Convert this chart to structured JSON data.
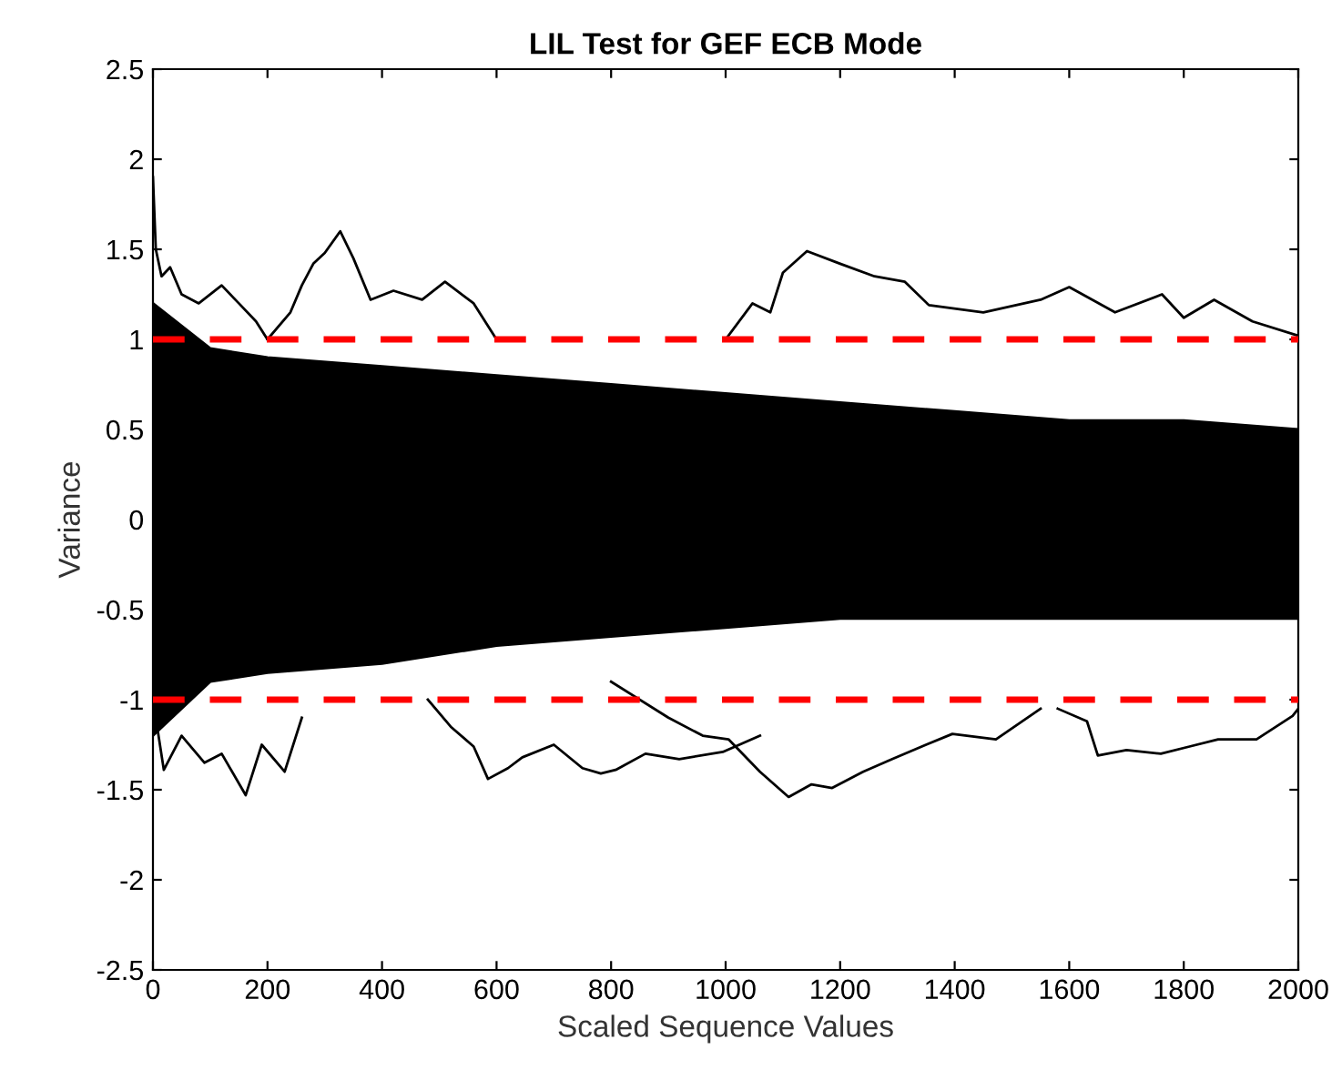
{
  "chart_data": {
    "type": "line",
    "title": "LIL Test for GEF ECB Mode",
    "xlabel": "Scaled Sequence Values",
    "ylabel": "Variance",
    "xlim": [
      0,
      2000
    ],
    "xticks": [
      0,
      200,
      400,
      600,
      800,
      1000,
      1200,
      1400,
      1600,
      1800,
      2000
    ],
    "ylim": [
      -2.5,
      2.5
    ],
    "yticks": [
      -2.5,
      -2,
      -1.5,
      -1,
      -0.5,
      0,
      0.5,
      1,
      1.5,
      2,
      2.5
    ],
    "grid": false,
    "legend": false,
    "line_style": "solid",
    "marker": "none",
    "ref_lines": [
      {
        "axis": "y",
        "value": 1,
        "color": "#ff0000",
        "line_style": "dashed"
      },
      {
        "axis": "y",
        "value": -1,
        "color": "#ff0000",
        "line_style": "dashed"
      }
    ],
    "series": [
      {
        "type": "area",
        "color": "#000000",
        "x": [
          0,
          100,
          200,
          400,
          600,
          800,
          1000,
          1200,
          1400,
          1600,
          1800,
          2000
        ],
        "values": [
          1.2,
          0.95,
          0.9,
          0.85,
          0.8,
          0.75,
          0.7,
          0.65,
          0.6,
          0.55,
          0.55,
          0.5
        ]
      },
      {
        "type": "area",
        "color": "#000000",
        "x": [
          0,
          100,
          200,
          400,
          600,
          800,
          1000,
          1200,
          1400,
          1600,
          1800,
          2000
        ],
        "values": [
          -1.2,
          -0.9,
          -0.85,
          -0.8,
          -0.7,
          -0.65,
          -0.6,
          -0.55,
          -0.55,
          -0.55,
          -0.55,
          -0.55
        ]
      },
      {
        "color": "#000000",
        "x": [
          0,
          5,
          15,
          30,
          50,
          80,
          120,
          150,
          180,
          200
        ],
        "values": [
          1.9,
          1.5,
          1.35,
          1.4,
          1.25,
          1.2,
          1.3,
          1.2,
          1.1,
          1.0
        ]
      },
      {
        "color": "#000000",
        "x": [
          200,
          240,
          260,
          280,
          300,
          327,
          350,
          380,
          420,
          470,
          510,
          560,
          600
        ],
        "values": [
          1.0,
          1.15,
          1.3,
          1.42,
          1.48,
          1.6,
          1.45,
          1.22,
          1.27,
          1.22,
          1.32,
          1.2,
          1.0
        ]
      },
      {
        "color": "#000000",
        "x": [
          1000,
          1047,
          1078,
          1100,
          1142,
          1200,
          1260,
          1313,
          1355,
          1450,
          1550,
          1600,
          1680,
          1762,
          1800,
          1853,
          1920,
          2000
        ],
        "values": [
          1.0,
          1.2,
          1.15,
          1.37,
          1.49,
          1.42,
          1.35,
          1.32,
          1.19,
          1.15,
          1.22,
          1.29,
          1.15,
          1.25,
          1.12,
          1.22,
          1.1,
          1.02
        ]
      },
      {
        "color": "#000000",
        "x": [
          0,
          19,
          50,
          90,
          120,
          162,
          190,
          230,
          260
        ],
        "values": [
          -1.0,
          -1.39,
          -1.2,
          -1.35,
          -1.3,
          -1.53,
          -1.25,
          -1.4,
          -1.1
        ]
      },
      {
        "color": "#000000",
        "x": [
          480,
          520,
          560,
          585,
          620,
          645,
          700,
          750,
          782,
          808,
          860,
          919,
          995,
          1060
        ],
        "values": [
          -1.0,
          -1.15,
          -1.26,
          -1.44,
          -1.38,
          -1.32,
          -1.25,
          -1.38,
          -1.41,
          -1.39,
          -1.3,
          -1.33,
          -1.29,
          -1.2
        ]
      },
      {
        "color": "#000000",
        "x": [
          800,
          900,
          960,
          1005,
          1060,
          1110,
          1150,
          1186,
          1240,
          1291,
          1350,
          1396,
          1472,
          1550
        ],
        "values": [
          -0.9,
          -1.1,
          -1.2,
          -1.22,
          -1.4,
          -1.54,
          -1.47,
          -1.49,
          -1.4,
          -1.33,
          -1.25,
          -1.19,
          -1.22,
          -1.05
        ]
      },
      {
        "color": "#000000",
        "x": [
          1580,
          1631,
          1650,
          1700,
          1760,
          1810,
          1860,
          1927,
          1990,
          2000
        ],
        "values": [
          -1.05,
          -1.12,
          -1.31,
          -1.28,
          -1.3,
          -1.26,
          -1.22,
          -1.22,
          -1.09,
          -1.05
        ]
      }
    ]
  }
}
